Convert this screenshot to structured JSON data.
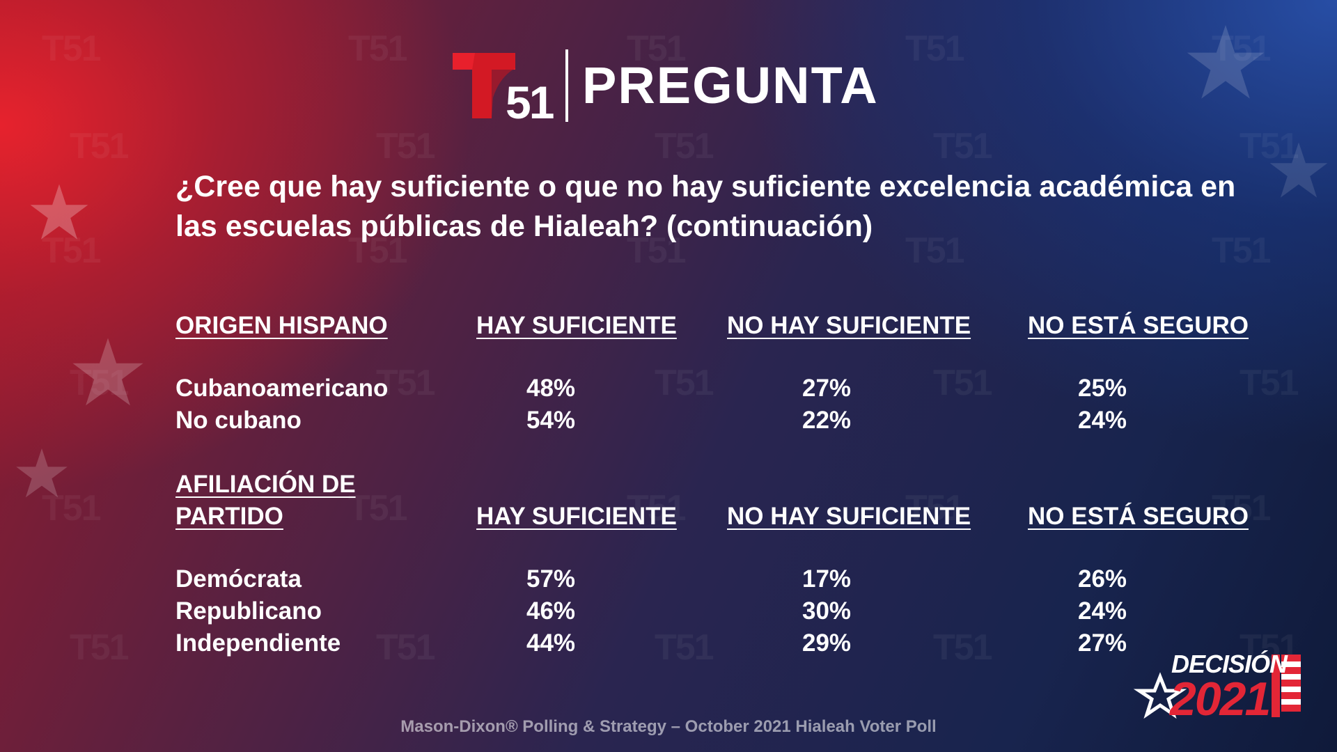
{
  "header": {
    "logo_number": "51",
    "title": "PREGUNTA"
  },
  "question": "¿Cree que hay suficiente o que no hay suficiente excelencia académica en las escuelas públicas de Hialeah? (continuación)",
  "source": "Mason-Dixon® Polling & Strategy – October 2021 Hialeah Voter Poll",
  "badge": {
    "top": "DECISIÓN",
    "year": "2021"
  },
  "colors": {
    "accent_red": "#e32636",
    "brand_blue": "#1b2a5c"
  },
  "chart_data": [
    {
      "type": "table",
      "group_label": "ORIGEN HISPANO",
      "columns": [
        "HAY SUFICIENTE",
        "NO HAY SUFICIENTE",
        "NO ESTÁ SEGURO"
      ],
      "rows": [
        {
          "label": "Cubanoamericano",
          "values": [
            "48%",
            "27%",
            "25%"
          ]
        },
        {
          "label": "No cubano",
          "values": [
            "54%",
            "22%",
            "24%"
          ]
        }
      ]
    },
    {
      "type": "table",
      "group_label_lines": [
        "AFILIACIÓN DE",
        "PARTIDO"
      ],
      "columns": [
        "HAY SUFICIENTE",
        "NO HAY SUFICIENTE",
        "NO ESTÁ SEGURO"
      ],
      "rows": [
        {
          "label": "Demócrata",
          "values": [
            "57%",
            "17%",
            "26%"
          ]
        },
        {
          "label": "Republicano",
          "values": [
            "46%",
            "30%",
            "24%"
          ]
        },
        {
          "label": "Independiente",
          "values": [
            "44%",
            "29%",
            "27%"
          ]
        }
      ]
    }
  ]
}
